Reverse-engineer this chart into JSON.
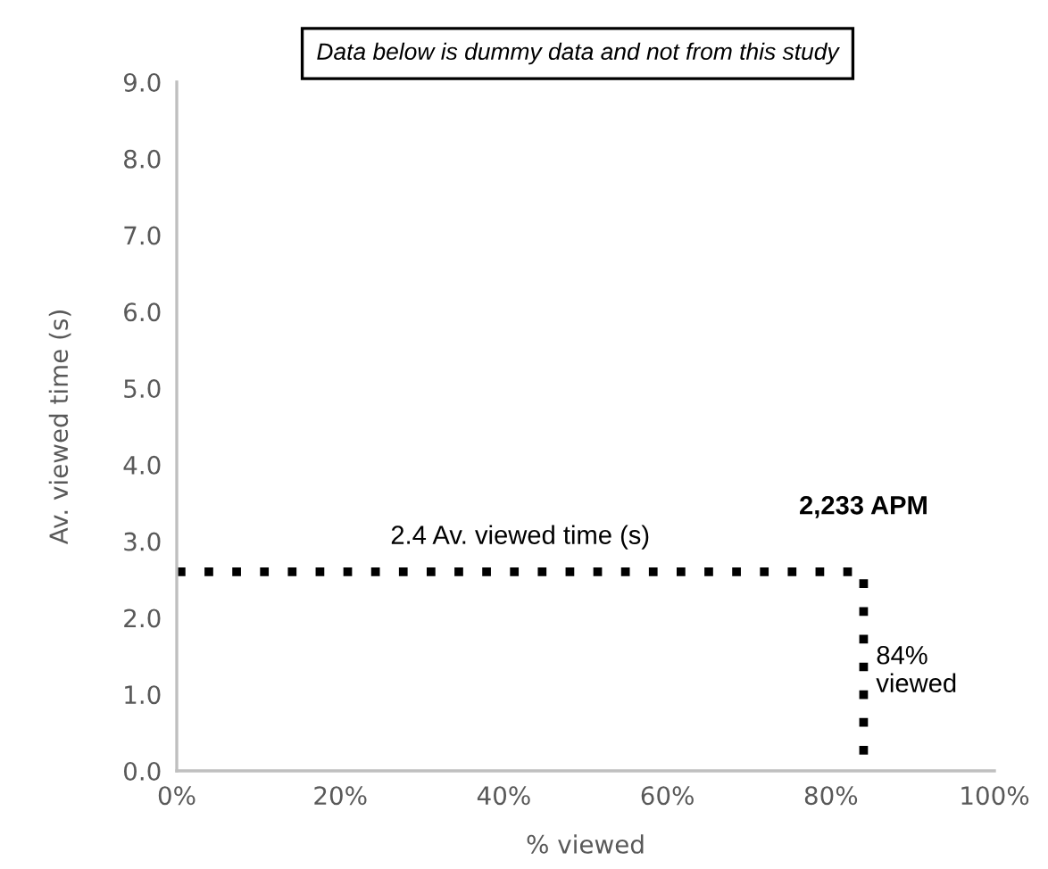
{
  "chart_data": {
    "type": "step",
    "title": "Data below is dummy data and not from this study",
    "xlabel": "% viewed",
    "ylabel": "Av. viewed time (s)",
    "series": [
      {
        "color": "#000000",
        "x": [
          0,
          84
        ],
        "values": [
          2.6,
          0
        ]
      }
    ],
    "line_style": "dotted",
    "marker": "none",
    "grid": false,
    "legend": false,
    "xlim": [
      0,
      100
    ],
    "ylim": [
      0,
      9
    ],
    "xticks": [
      {
        "value": 0,
        "label": "0%"
      },
      {
        "value": 20,
        "label": "20%"
      },
      {
        "value": 40,
        "label": "40%"
      },
      {
        "value": 60,
        "label": "60%"
      },
      {
        "value": 80,
        "label": "80%"
      },
      {
        "value": 100,
        "label": "100%"
      }
    ],
    "yticks": [
      {
        "value": 0,
        "label": "0.0"
      },
      {
        "value": 1,
        "label": "1.0"
      },
      {
        "value": 2,
        "label": "2.0"
      },
      {
        "value": 3,
        "label": "3.0"
      },
      {
        "value": 4,
        "label": "4.0"
      },
      {
        "value": 5,
        "label": "5.0"
      },
      {
        "value": 6,
        "label": "6.0"
      },
      {
        "value": 7,
        "label": "7.0"
      },
      {
        "value": 8,
        "label": "8.0"
      },
      {
        "value": 9,
        "label": "9.0"
      }
    ],
    "annotations": [
      "2.4 Av. viewed time (s)",
      "2,233 APM",
      "84%\nviewed"
    ]
  }
}
